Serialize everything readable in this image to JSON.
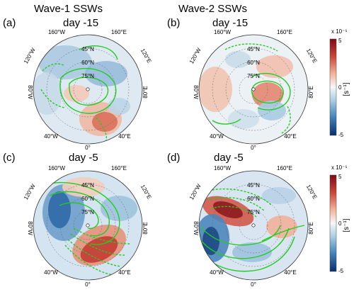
{
  "figure": {
    "columns": [
      "Wave-1 SSWs",
      "Wave-2 SSWs"
    ],
    "panels": [
      {
        "letter": "(a)",
        "day": "day -15"
      },
      {
        "letter": "(b)",
        "day": "day -15"
      },
      {
        "letter": "(c)",
        "day": "day -5"
      },
      {
        "letter": "(d)",
        "day": "day -5"
      }
    ],
    "map_labels": {
      "lat_45": "45°N",
      "lat_60": "60°N",
      "lat_75": "75°N",
      "lon_160w": "160°W",
      "lon_160e": "160°E",
      "lon_120w": "120°W",
      "lon_120e": "120°E",
      "lon_80w": "80°W",
      "lon_80e": "80°E",
      "lon_40w": "40°W",
      "lon_40e": "40°E",
      "lon_0": "0°"
    },
    "colorbar": {
      "multiplier": "x 10⁻⁵",
      "ticks": [
        "5",
        "0",
        "-5"
      ],
      "unit": "[s⁻¹]",
      "colors": [
        "#7f0a12",
        "#c9443a",
        "#f3b49a",
        "#f7f7f7",
        "#a8cde3",
        "#3d7fb7",
        "#0b2f6b"
      ]
    },
    "colors": {
      "contour": "#22cc22",
      "ocean_line": "#333333"
    }
  }
}
